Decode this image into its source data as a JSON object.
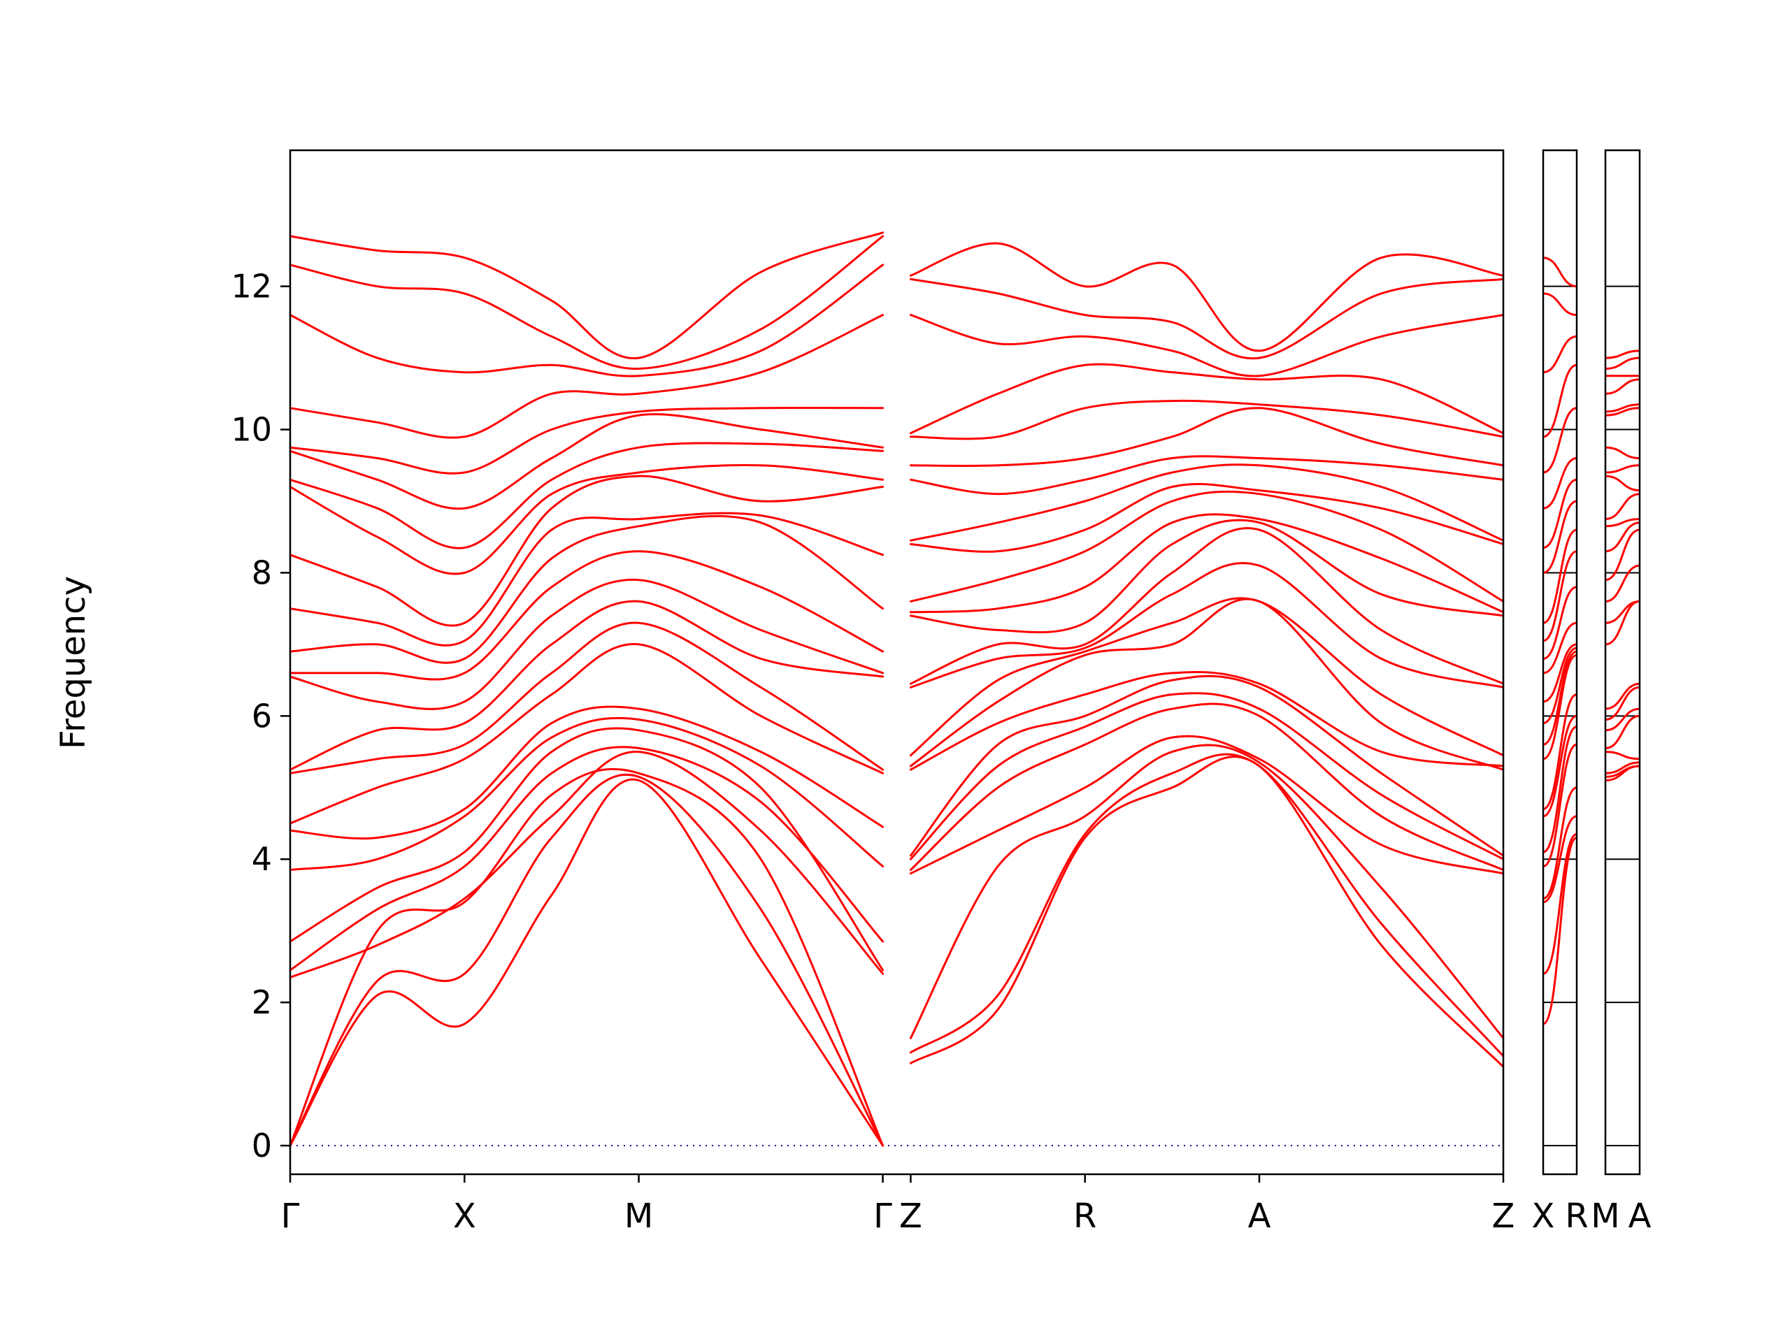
{
  "chart_data": {
    "type": "line",
    "title": "",
    "xlabel": "",
    "ylabel": "Frequency",
    "ylim": [
      -0.4,
      13.9
    ],
    "yticks": [
      0,
      2,
      4,
      6,
      8,
      10,
      12
    ],
    "grid": false,
    "legend": "none",
    "line_color": "#ff0000",
    "axis_color": "#000000",
    "zero_line_color": "#00008b",
    "main_panel": {
      "tick_labels": [
        "Γ",
        "X",
        "M",
        "Γ",
        "Z",
        "R",
        "A",
        "Z"
      ],
      "tick_positions": [
        0,
        1,
        2,
        3.4,
        3.56,
        4.56,
        5.56,
        6.96
      ]
    },
    "side_panels": [
      {
        "name": "XR",
        "labels": [
          "X",
          "R"
        ],
        "from_node": 2,
        "to_node": 9
      },
      {
        "name": "MA",
        "labels": [
          "M",
          "A"
        ],
        "from_node": 4,
        "to_node": 11
      }
    ],
    "node_positions": [
      0,
      0.5,
      1,
      1.5,
      2,
      2.7,
      3.4,
      3.56,
      4.06,
      4.56,
      5.06,
      5.56,
      6.26,
      6.96
    ],
    "node_names": [
      "G",
      "G-X",
      "X",
      "X-M",
      "M",
      "M-G",
      "G",
      "Z",
      "Z-R",
      "R",
      "R-A",
      "A",
      "A-Z",
      "Z"
    ],
    "break_after_node": 6,
    "branches": [
      [
        0.0,
        2.1,
        1.7,
        3.5,
        5.1,
        2.6,
        0.0,
        1.15,
        1.9,
        4.3,
        5.0,
        5.3,
        2.8,
        1.1
      ],
      [
        0.0,
        2.3,
        2.4,
        4.3,
        5.15,
        3.3,
        0.0,
        1.3,
        2.1,
        4.35,
        5.2,
        5.3,
        3.1,
        1.25
      ],
      [
        0.0,
        3.0,
        3.4,
        4.9,
        5.2,
        4.0,
        0.0,
        1.5,
        3.9,
        4.6,
        5.5,
        5.35,
        3.6,
        1.5
      ],
      [
        2.35,
        2.8,
        3.45,
        4.6,
        5.5,
        4.4,
        2.4,
        3.8,
        4.4,
        5.0,
        5.7,
        5.4,
        4.2,
        3.8
      ],
      [
        2.45,
        3.3,
        3.9,
        5.2,
        5.55,
        4.8,
        2.85,
        3.85,
        5.0,
        5.6,
        6.1,
        6.0,
        4.6,
        3.85
      ],
      [
        2.85,
        3.6,
        4.1,
        5.5,
        5.8,
        5.0,
        2.45,
        4.0,
        5.3,
        5.85,
        6.3,
        6.1,
        4.9,
        4.0
      ],
      [
        3.85,
        4.0,
        4.6,
        5.7,
        5.95,
        5.3,
        3.9,
        4.05,
        5.6,
        6.0,
        6.5,
        6.4,
        5.2,
        4.05
      ],
      [
        4.4,
        4.3,
        4.7,
        5.9,
        6.1,
        5.5,
        4.45,
        5.25,
        5.9,
        6.3,
        6.6,
        6.45,
        5.5,
        5.3
      ],
      [
        4.5,
        5.0,
        5.4,
        6.3,
        7.0,
        6.0,
        5.2,
        5.3,
        6.2,
        6.85,
        7.0,
        7.6,
        5.9,
        5.25
      ],
      [
        5.2,
        5.4,
        5.6,
        6.6,
        7.3,
        6.4,
        5.25,
        5.45,
        6.5,
        6.9,
        7.3,
        7.6,
        6.3,
        5.45
      ],
      [
        5.25,
        5.8,
        5.9,
        7.0,
        7.6,
        6.8,
        6.55,
        6.4,
        6.8,
        6.95,
        7.7,
        8.1,
        6.8,
        6.4
      ],
      [
        6.55,
        6.2,
        6.2,
        7.4,
        7.9,
        7.2,
        6.6,
        6.45,
        7.0,
        7.0,
        8.0,
        8.6,
        7.2,
        6.45
      ],
      [
        6.6,
        6.6,
        6.6,
        7.8,
        8.3,
        7.8,
        6.9,
        7.4,
        7.2,
        7.3,
        8.4,
        8.7,
        7.7,
        7.4
      ],
      [
        6.9,
        7.0,
        6.8,
        8.2,
        8.65,
        8.7,
        7.5,
        7.45,
        7.5,
        7.8,
        8.7,
        8.75,
        8.2,
        7.45
      ],
      [
        7.5,
        7.3,
        7.05,
        8.6,
        8.75,
        8.8,
        8.25,
        7.6,
        7.9,
        8.3,
        9.0,
        9.1,
        8.6,
        7.6
      ],
      [
        8.25,
        7.8,
        7.3,
        8.9,
        9.35,
        9.0,
        9.2,
        8.4,
        8.3,
        8.6,
        9.2,
        9.15,
        8.9,
        8.4
      ],
      [
        9.2,
        8.5,
        8.0,
        9.1,
        9.4,
        9.5,
        9.3,
        8.45,
        8.7,
        9.0,
        9.4,
        9.5,
        9.2,
        8.45
      ],
      [
        9.3,
        8.9,
        8.35,
        9.3,
        9.75,
        9.8,
        9.7,
        9.3,
        9.1,
        9.3,
        9.6,
        9.6,
        9.5,
        9.3
      ],
      [
        9.7,
        9.3,
        8.9,
        9.6,
        10.2,
        10.0,
        9.75,
        9.5,
        9.5,
        9.6,
        9.9,
        10.3,
        9.8,
        9.5
      ],
      [
        9.75,
        9.6,
        9.4,
        10.0,
        10.25,
        10.3,
        10.3,
        9.9,
        9.9,
        10.3,
        10.4,
        10.35,
        10.2,
        9.9
      ],
      [
        10.3,
        10.1,
        9.9,
        10.5,
        10.5,
        10.8,
        11.6,
        9.95,
        10.5,
        10.9,
        10.8,
        10.7,
        10.7,
        9.95
      ],
      [
        11.6,
        11.0,
        10.8,
        10.9,
        10.75,
        11.1,
        12.3,
        11.6,
        11.2,
        11.3,
        11.1,
        10.75,
        11.3,
        11.6
      ],
      [
        12.3,
        12.0,
        11.9,
        11.3,
        10.85,
        11.4,
        12.7,
        12.1,
        11.9,
        11.6,
        11.5,
        11.0,
        11.9,
        12.1
      ],
      [
        12.7,
        12.5,
        12.4,
        11.8,
        11.0,
        12.2,
        12.75,
        12.15,
        12.6,
        12.0,
        12.3,
        11.1,
        12.4,
        12.15
      ]
    ]
  }
}
